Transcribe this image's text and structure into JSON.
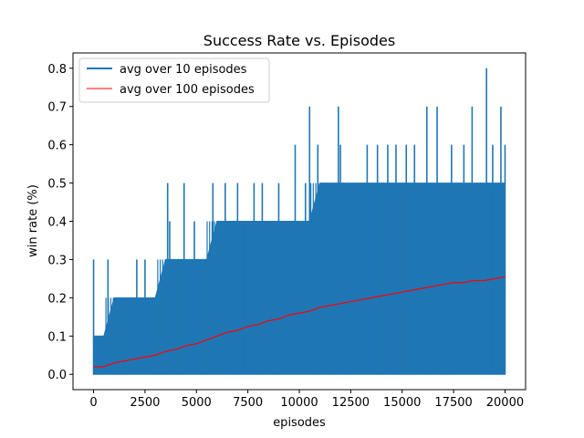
{
  "chart_data": {
    "type": "line",
    "title": "Success Rate vs. Episodes",
    "xlabel": "episodes",
    "ylabel": "win rate (%)",
    "xlim": [
      -1000,
      21000
    ],
    "ylim": [
      -0.04,
      0.84
    ],
    "x_ticks": [
      0,
      2500,
      5000,
      7500,
      10000,
      12500,
      15000,
      17500,
      20000
    ],
    "x_tick_labels": [
      "0",
      "2500",
      "5000",
      "7500",
      "10000",
      "12500",
      "15000",
      "17500",
      "20000"
    ],
    "y_ticks": [
      0.0,
      0.1,
      0.2,
      0.3,
      0.4,
      0.5,
      0.6,
      0.7,
      0.8
    ],
    "y_tick_labels": [
      "0.0",
      "0.1",
      "0.2",
      "0.3",
      "0.4",
      "0.5",
      "0.6",
      "0.7",
      "0.8"
    ],
    "grid": false,
    "legend_position": "top-left",
    "series": [
      {
        "name": "avg over 10 episodes",
        "color": "#1f77b4",
        "x": [
          0,
          500,
          1000,
          1500,
          2000,
          2500,
          3000,
          3500,
          4000,
          4500,
          5000,
          5500,
          6000,
          6500,
          7000,
          7500,
          8000,
          8500,
          9000,
          9500,
          10000,
          10500,
          11000,
          11500,
          12000,
          12500,
          13000,
          13500,
          14000,
          14500,
          15000,
          15500,
          16000,
          16500,
          17000,
          17500,
          18000,
          18500,
          19000,
          19500,
          20000
        ],
        "band_low": [
          0.0,
          0.0,
          0.0,
          0.0,
          0.0,
          0.0,
          0.0,
          0.0,
          0.0,
          0.0,
          0.0,
          0.0,
          0.0,
          0.0,
          0.0,
          0.0,
          0.0,
          0.0,
          0.0,
          0.0,
          0.0,
          0.0,
          0.0,
          0.0,
          0.0,
          0.0,
          0.0,
          0.0,
          0.0,
          0.0,
          0.0,
          0.0,
          0.0,
          0.0,
          0.0,
          0.0,
          0.0,
          0.0,
          0.0,
          0.0,
          0.0
        ],
        "band_high": [
          0.1,
          0.1,
          0.2,
          0.2,
          0.2,
          0.2,
          0.2,
          0.3,
          0.3,
          0.3,
          0.3,
          0.3,
          0.4,
          0.4,
          0.4,
          0.4,
          0.4,
          0.4,
          0.4,
          0.4,
          0.4,
          0.4,
          0.5,
          0.5,
          0.5,
          0.5,
          0.5,
          0.5,
          0.5,
          0.5,
          0.5,
          0.5,
          0.5,
          0.5,
          0.5,
          0.5,
          0.5,
          0.5,
          0.5,
          0.5,
          0.5
        ],
        "spikes": [
          [
            0,
            0.3
          ],
          [
            700,
            0.3
          ],
          [
            2100,
            0.3
          ],
          [
            2500,
            0.3
          ],
          [
            3600,
            0.5
          ],
          [
            3700,
            0.4
          ],
          [
            4400,
            0.5
          ],
          [
            4900,
            0.4
          ],
          [
            5800,
            0.5
          ],
          [
            6400,
            0.5
          ],
          [
            7000,
            0.5
          ],
          [
            7800,
            0.5
          ],
          [
            8200,
            0.5
          ],
          [
            9000,
            0.5
          ],
          [
            9800,
            0.6
          ],
          [
            10300,
            0.5
          ],
          [
            10500,
            0.7
          ],
          [
            10900,
            0.6
          ],
          [
            11500,
            0.5
          ],
          [
            11900,
            0.7
          ],
          [
            12000,
            0.6
          ],
          [
            12500,
            0.5
          ],
          [
            13300,
            0.6
          ],
          [
            13800,
            0.6
          ],
          [
            14300,
            0.6
          ],
          [
            14700,
            0.6
          ],
          [
            15200,
            0.6
          ],
          [
            15600,
            0.6
          ],
          [
            16200,
            0.7
          ],
          [
            16700,
            0.7
          ],
          [
            17400,
            0.6
          ],
          [
            18000,
            0.6
          ],
          [
            18400,
            0.7
          ],
          [
            19100,
            0.8
          ],
          [
            19400,
            0.6
          ],
          [
            19800,
            0.7
          ],
          [
            20000,
            0.6
          ]
        ]
      },
      {
        "name": "avg over 100 episodes",
        "color": "#ff0000",
        "x": [
          0,
          500,
          1000,
          1500,
          2000,
          2500,
          3000,
          3500,
          4000,
          4500,
          5000,
          5500,
          6000,
          6500,
          7000,
          7500,
          8000,
          8500,
          9000,
          9500,
          10000,
          10500,
          11000,
          11500,
          12000,
          12500,
          13000,
          13500,
          14000,
          14500,
          15000,
          15500,
          16000,
          16500,
          17000,
          17500,
          18000,
          18500,
          19000,
          19500,
          20000
        ],
        "y": [
          0.02,
          0.02,
          0.03,
          0.035,
          0.04,
          0.045,
          0.05,
          0.06,
          0.065,
          0.075,
          0.08,
          0.09,
          0.1,
          0.11,
          0.115,
          0.125,
          0.13,
          0.14,
          0.145,
          0.155,
          0.16,
          0.165,
          0.175,
          0.18,
          0.185,
          0.19,
          0.195,
          0.2,
          0.205,
          0.21,
          0.215,
          0.22,
          0.225,
          0.23,
          0.235,
          0.24,
          0.24,
          0.245,
          0.245,
          0.25,
          0.255
        ]
      }
    ]
  }
}
